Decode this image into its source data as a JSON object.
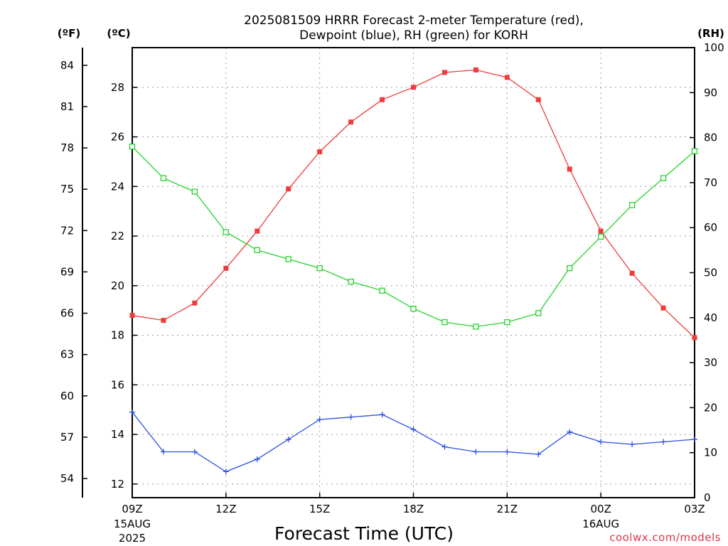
{
  "chart_data": {
    "type": "line",
    "title_line1": "2025081509 HRRR Forecast 2-meter Temperature (red),",
    "title_line2": "Dewpoint (blue), RH (green) for KORH",
    "xlabel": "Forecast Time (UTC)",
    "credit": "coolwx.com/models",
    "axes": {
      "fahrenheit": {
        "label": "(ºF)",
        "ticks": [
          54,
          57,
          60,
          63,
          66,
          69,
          72,
          75,
          78,
          81,
          84
        ]
      },
      "celsius": {
        "label": "(ºC)",
        "ticks": [
          12,
          14,
          16,
          18,
          20,
          22,
          24,
          26,
          28
        ],
        "ylim": [
          11.45,
          29.6
        ]
      },
      "rh": {
        "label": "(RH)",
        "ticks": [
          0,
          10,
          20,
          30,
          40,
          50,
          60,
          70,
          80,
          90,
          100
        ],
        "ylim": [
          0,
          100
        ]
      }
    },
    "x_hours": [
      0,
      1,
      2,
      3,
      4,
      5,
      6,
      7,
      8,
      9,
      10,
      11,
      12,
      13,
      14,
      15,
      16,
      17,
      18
    ],
    "x_range": [
      0,
      18
    ],
    "x_ticks": [
      {
        "hour": 0,
        "label": "09Z",
        "sub1": "15AUG",
        "sub2": "2025"
      },
      {
        "hour": 3,
        "label": "12Z",
        "sub1": "",
        "sub2": ""
      },
      {
        "hour": 6,
        "label": "15Z",
        "sub1": "",
        "sub2": ""
      },
      {
        "hour": 9,
        "label": "18Z",
        "sub1": "",
        "sub2": ""
      },
      {
        "hour": 12,
        "label": "21Z",
        "sub1": "",
        "sub2": ""
      },
      {
        "hour": 15,
        "label": "00Z",
        "sub1": "16AUG",
        "sub2": ""
      },
      {
        "hour": 18,
        "label": "03Z",
        "sub1": "",
        "sub2": ""
      }
    ],
    "grid": true,
    "series": [
      {
        "name": "Temperature",
        "axis": "celsius",
        "color": "#ef3b3b",
        "marker": "filled-square",
        "values": [
          18.8,
          18.6,
          19.3,
          20.7,
          22.2,
          23.9,
          25.4,
          26.6,
          27.5,
          28.0,
          28.6,
          28.7,
          28.4,
          27.5,
          24.7,
          22.2,
          20.5,
          19.1,
          17.9
        ]
      },
      {
        "name": "Dewpoint",
        "axis": "celsius",
        "color": "#2b4ee6",
        "marker": "plus",
        "values": [
          14.9,
          13.3,
          13.3,
          12.5,
          13.0,
          13.8,
          14.6,
          14.7,
          14.8,
          14.2,
          13.5,
          13.3,
          13.3,
          13.2,
          14.1,
          13.7,
          13.6,
          13.7,
          13.8
        ]
      },
      {
        "name": "RH",
        "axis": "rh",
        "color": "#22d22c",
        "marker": "open-square",
        "values": [
          78,
          71,
          68,
          59,
          55,
          53,
          51,
          48,
          46,
          42,
          39,
          38,
          39,
          41,
          51,
          58,
          65,
          71,
          77
        ]
      }
    ]
  }
}
